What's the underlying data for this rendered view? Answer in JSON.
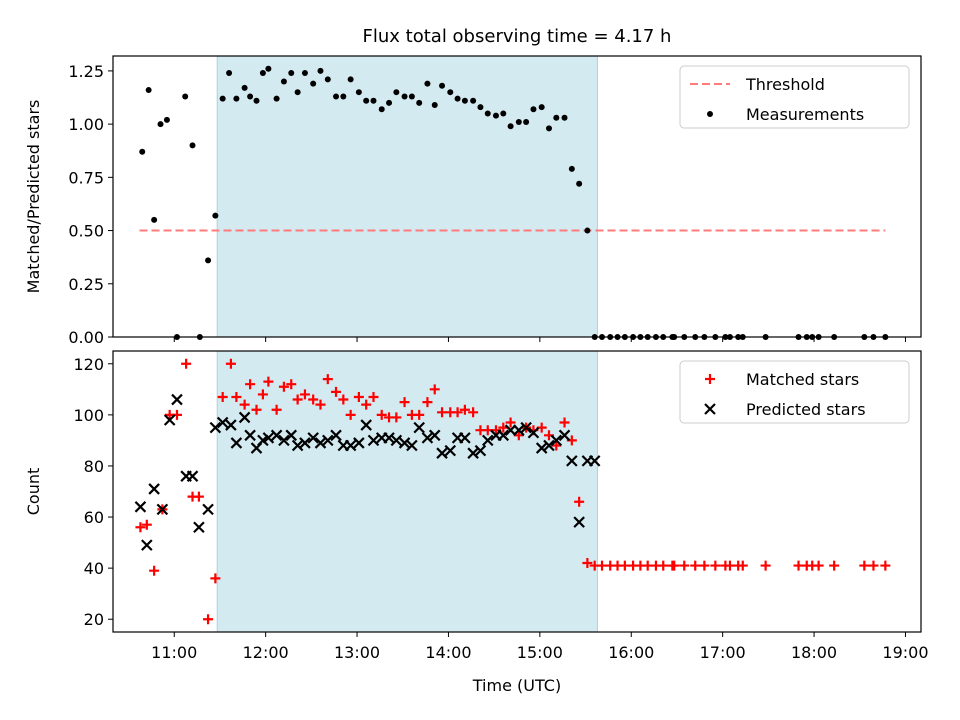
{
  "title": "Flux total observing time = 4.17 h",
  "colors": {
    "highlight": "#d3eaf0",
    "threshold": "#ff7b7b",
    "measurement": "#000000",
    "matched": "#ff0000",
    "predicted": "#000000"
  },
  "chart_data": [
    {
      "type": "scatter",
      "ylabel": "Matched/Predicted stars",
      "ylim": [
        0,
        1.32
      ],
      "yticks": [
        "0.00",
        "0.25",
        "0.50",
        "0.75",
        "1.00",
        "1.25"
      ],
      "ytick_values": [
        0,
        0.25,
        0.5,
        0.75,
        1.0,
        1.25
      ],
      "xlim_hours": [
        10.33,
        19.17
      ],
      "highlight_range_hours": [
        11.47,
        15.63
      ],
      "threshold": {
        "name": "Threshold",
        "value": 0.5,
        "x_range_hours": [
          10.62,
          18.78
        ]
      },
      "legend": [
        "Threshold",
        "Measurements"
      ],
      "legend_position": "upper right",
      "series": [
        {
          "name": "Measurements",
          "x": [
            10.65,
            10.72,
            10.78,
            10.85,
            10.92,
            11.03,
            11.12,
            11.2,
            11.28,
            11.37,
            11.45,
            11.53,
            11.6,
            11.68,
            11.77,
            11.83,
            11.9,
            11.97,
            12.03,
            12.12,
            12.2,
            12.28,
            12.35,
            12.43,
            12.52,
            12.6,
            12.68,
            12.77,
            12.85,
            12.93,
            13.02,
            13.1,
            13.18,
            13.27,
            13.35,
            13.43,
            13.52,
            13.6,
            13.68,
            13.77,
            13.85,
            13.93,
            14.02,
            14.1,
            14.18,
            14.27,
            14.35,
            14.43,
            14.52,
            14.6,
            14.68,
            14.77,
            14.85,
            14.93,
            15.02,
            15.1,
            15.18,
            15.27,
            15.35,
            15.43,
            15.52,
            15.6,
            15.68,
            15.77,
            15.85,
            15.93,
            16.02,
            16.1,
            16.18,
            16.27,
            16.35,
            16.45,
            16.47,
            16.58,
            16.7,
            16.8,
            16.92,
            17.03,
            17.08,
            17.17,
            17.22,
            17.47,
            17.83,
            17.92,
            17.98,
            18.05,
            18.22,
            18.55,
            18.65,
            18.78
          ],
          "y": [
            0.87,
            1.16,
            0.55,
            1.0,
            1.02,
            0.0,
            1.13,
            0.9,
            0.0,
            0.36,
            0.57,
            1.12,
            1.24,
            1.12,
            1.17,
            1.13,
            1.11,
            1.24,
            1.26,
            1.12,
            1.2,
            1.24,
            1.15,
            1.24,
            1.19,
            1.25,
            1.21,
            1.13,
            1.13,
            1.21,
            1.15,
            1.11,
            1.11,
            1.07,
            1.1,
            1.15,
            1.13,
            1.13,
            1.1,
            1.19,
            1.09,
            1.18,
            1.15,
            1.12,
            1.11,
            1.11,
            1.08,
            1.05,
            1.04,
            1.05,
            0.99,
            1.01,
            1.01,
            1.07,
            1.08,
            0.98,
            1.03,
            1.03,
            0.79,
            0.72,
            0.5,
            0.0,
            0.0,
            0.0,
            0.0,
            0.0,
            0.0,
            0.0,
            0.0,
            0.0,
            0.0,
            0.0,
            0.0,
            0.0,
            0.0,
            0.0,
            0.0,
            0.0,
            0.0,
            0.0,
            0.0,
            0.0,
            0.0,
            0.0,
            0.0,
            0.0,
            0.0,
            0.0,
            0.0,
            0.0
          ]
        }
      ]
    },
    {
      "type": "scatter",
      "ylabel": "Count",
      "xlabel": "Time (UTC)",
      "ylim": [
        15,
        125
      ],
      "yticks": [
        "20",
        "40",
        "60",
        "80",
        "100",
        "120"
      ],
      "ytick_values": [
        20,
        40,
        60,
        80,
        100,
        120
      ],
      "xlim_hours": [
        10.33,
        19.17
      ],
      "xticks": [
        "11:00",
        "12:00",
        "13:00",
        "14:00",
        "15:00",
        "16:00",
        "17:00",
        "18:00",
        "19:00"
      ],
      "xtick_values": [
        11,
        12,
        13,
        14,
        15,
        16,
        17,
        18,
        19
      ],
      "highlight_range_hours": [
        11.47,
        15.63
      ],
      "legend": [
        "Matched stars",
        "Predicted stars"
      ],
      "legend_position": "upper right",
      "series": [
        {
          "name": "Matched stars",
          "marker": "plus",
          "x": [
            10.63,
            10.7,
            10.78,
            10.87,
            10.95,
            11.03,
            11.13,
            11.2,
            11.27,
            11.37,
            11.45,
            11.53,
            11.62,
            11.68,
            11.77,
            11.83,
            11.9,
            11.97,
            12.03,
            12.12,
            12.2,
            12.28,
            12.35,
            12.43,
            12.52,
            12.6,
            12.68,
            12.77,
            12.85,
            12.93,
            13.02,
            13.1,
            13.18,
            13.27,
            13.35,
            13.43,
            13.52,
            13.6,
            13.68,
            13.77,
            13.85,
            13.93,
            14.02,
            14.1,
            14.18,
            14.27,
            14.35,
            14.43,
            14.52,
            14.6,
            14.68,
            14.77,
            14.85,
            14.93,
            15.02,
            15.1,
            15.18,
            15.27,
            15.35,
            15.43,
            15.52,
            15.6,
            15.68,
            15.77,
            15.85,
            15.93,
            16.02,
            16.1,
            16.18,
            16.27,
            16.35,
            16.45,
            16.47,
            16.58,
            16.7,
            16.8,
            16.92,
            17.03,
            17.08,
            17.17,
            17.22,
            17.47,
            17.83,
            17.92,
            17.98,
            18.05,
            18.22,
            18.55,
            18.65,
            18.78
          ],
          "y": [
            56,
            57,
            39,
            63,
            100,
            100,
            120,
            68,
            68,
            20,
            36,
            107,
            120,
            107,
            104,
            112,
            102,
            108,
            113,
            102,
            111,
            112,
            106,
            108,
            106,
            104,
            114,
            109,
            106,
            100,
            107,
            104,
            107,
            100,
            99,
            99,
            105,
            100,
            100,
            105,
            110,
            101,
            101,
            101,
            102,
            101,
            94,
            94,
            94,
            95,
            97,
            92,
            95,
            94,
            95,
            92,
            88,
            97,
            90,
            66,
            42,
            41,
            41,
            41,
            41,
            41,
            41,
            41,
            41,
            41,
            41,
            41,
            41,
            41,
            41,
            41,
            41,
            41,
            41,
            41,
            41,
            41,
            41,
            41,
            41,
            41,
            41,
            41,
            41,
            41
          ]
        },
        {
          "name": "Predicted stars",
          "marker": "x",
          "x": [
            10.63,
            10.7,
            10.78,
            10.87,
            10.95,
            11.03,
            11.13,
            11.2,
            11.27,
            11.37,
            11.45,
            11.53,
            11.62,
            11.68,
            11.77,
            11.83,
            11.9,
            11.97,
            12.03,
            12.12,
            12.2,
            12.28,
            12.35,
            12.43,
            12.52,
            12.6,
            12.68,
            12.77,
            12.85,
            12.93,
            13.02,
            13.1,
            13.18,
            13.27,
            13.35,
            13.43,
            13.52,
            13.6,
            13.68,
            13.77,
            13.85,
            13.93,
            14.02,
            14.1,
            14.18,
            14.27,
            14.35,
            14.43,
            14.52,
            14.6,
            14.68,
            14.77,
            14.85,
            14.93,
            15.02,
            15.1,
            15.18,
            15.27,
            15.35,
            15.43,
            15.52,
            15.6
          ],
          "y": [
            64,
            49,
            71,
            63,
            98,
            106,
            76,
            76,
            56,
            63,
            95,
            97,
            96,
            89,
            99,
            92,
            87,
            90,
            91,
            92,
            90,
            92,
            88,
            89,
            91,
            89,
            90,
            92,
            88,
            88,
            89,
            96,
            90,
            91,
            91,
            90,
            89,
            88,
            95,
            91,
            92,
            85,
            86,
            91,
            91,
            85,
            86,
            90,
            92,
            92,
            94,
            94,
            95,
            93,
            87,
            88,
            90,
            92,
            82,
            58,
            82,
            82
          ]
        }
      ]
    }
  ]
}
